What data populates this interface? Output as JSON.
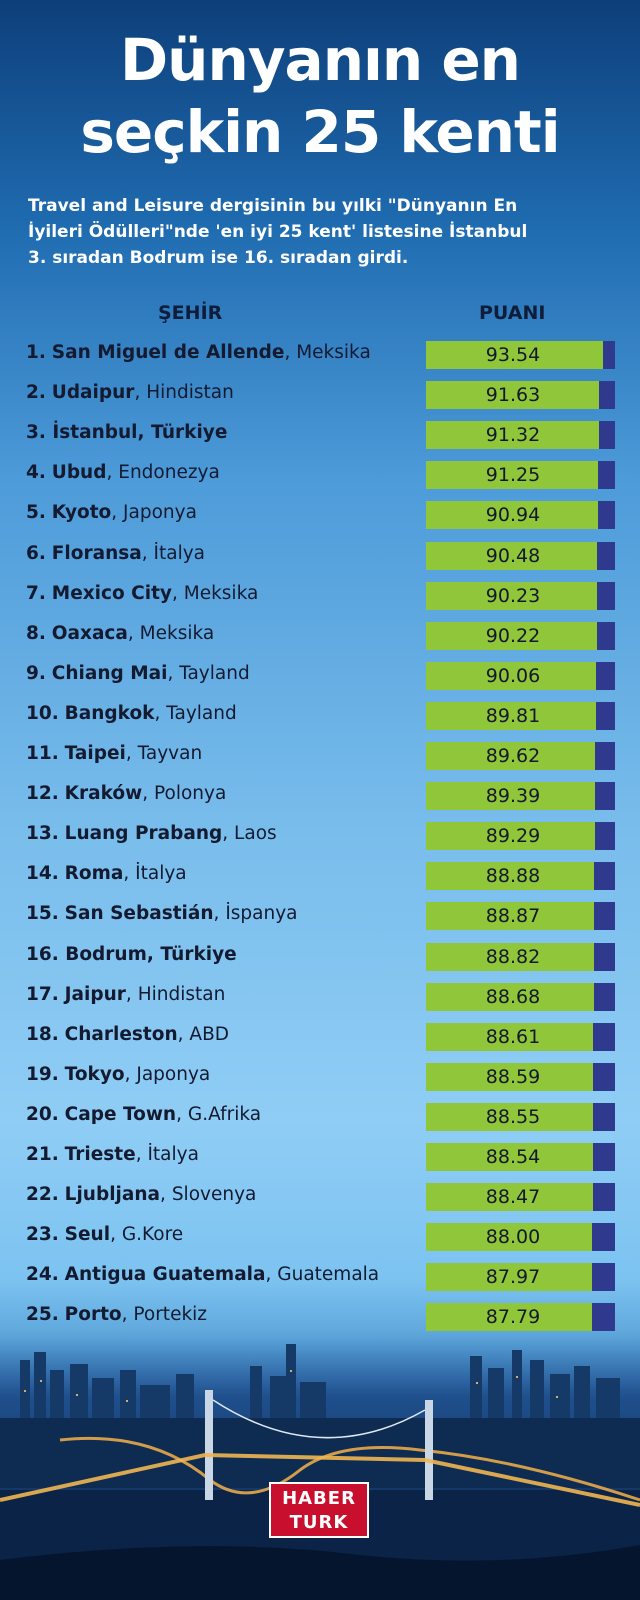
{
  "header": {
    "title_line1": "Dünyanın en",
    "title_line2": "seçkin 25 kenti",
    "subtitle_line1": "Travel and Leisure dergisinin bu yılki \"Dünyanın En",
    "subtitle_line2": "İyileri Ödülleri\"nde 'en iyi 25 kent' listesine İstanbul",
    "subtitle_line3": "3. sıradan Bodrum ise 16. sıradan girdi."
  },
  "columns": {
    "city": "ŞEHİR",
    "score": "PUANI"
  },
  "logo": {
    "line1": "HABER",
    "line2": "TURK"
  },
  "colors": {
    "bar": "#8fc63a",
    "bar_remainder": "#2f3a8f",
    "title": "#ffffff",
    "logo": "#c8102e"
  },
  "chart_data": {
    "type": "bar",
    "orientation": "horizontal",
    "xlim": [
      0,
      100
    ],
    "categories": [
      {
        "rank": "1.",
        "city": "San Miguel de Allende",
        "country": "Meksika",
        "highlight": false
      },
      {
        "rank": "2.",
        "city": "Udaipur",
        "country": "Hindistan",
        "highlight": false
      },
      {
        "rank": "3.",
        "city": "İstanbul",
        "country": "Türkiye",
        "highlight": true
      },
      {
        "rank": "4.",
        "city": "Ubud",
        "country": "Endonezya",
        "highlight": false
      },
      {
        "rank": "5.",
        "city": "Kyoto",
        "country": "Japonya",
        "highlight": false
      },
      {
        "rank": "6.",
        "city": "Floransa",
        "country": "İtalya",
        "highlight": false
      },
      {
        "rank": "7.",
        "city": "Mexico City",
        "country": "Meksika",
        "highlight": false
      },
      {
        "rank": "8.",
        "city": "Oaxaca",
        "country": "Meksika",
        "highlight": false
      },
      {
        "rank": "9.",
        "city": "Chiang Mai",
        "country": "Tayland",
        "highlight": false
      },
      {
        "rank": "10.",
        "city": "Bangkok",
        "country": "Tayland",
        "highlight": false
      },
      {
        "rank": "11.",
        "city": "Taipei",
        "country": "Tayvan",
        "highlight": false
      },
      {
        "rank": "12.",
        "city": "Kraków",
        "country": "Polonya",
        "highlight": false
      },
      {
        "rank": "13.",
        "city": "Luang Prabang",
        "country": "Laos",
        "highlight": false
      },
      {
        "rank": "14.",
        "city": "Roma",
        "country": "İtalya",
        "highlight": false
      },
      {
        "rank": "15.",
        "city": "San Sebastián",
        "country": "İspanya",
        "highlight": false
      },
      {
        "rank": "16.",
        "city": "Bodrum",
        "country": "Türkiye",
        "highlight": true
      },
      {
        "rank": "17.",
        "city": "Jaipur",
        "country": "Hindistan",
        "highlight": false
      },
      {
        "rank": "18.",
        "city": "Charleston",
        "country": "ABD",
        "highlight": false
      },
      {
        "rank": "19.",
        "city": "Tokyo",
        "country": "Japonya",
        "highlight": false
      },
      {
        "rank": "20.",
        "city": "Cape Town",
        "country": "G.Afrika",
        "highlight": false
      },
      {
        "rank": "21.",
        "city": "Trieste",
        "country": "İtalya",
        "highlight": false
      },
      {
        "rank": "22.",
        "city": "Ljubljana",
        "country": "Slovenya",
        "highlight": false
      },
      {
        "rank": "23.",
        "city": "Seul",
        "country": "G.Kore",
        "highlight": false
      },
      {
        "rank": "24.",
        "city": "Antigua Guatemala",
        "country": "Guatemala",
        "highlight": false
      },
      {
        "rank": "25.",
        "city": "Porto",
        "country": "Portekiz",
        "highlight": false
      }
    ],
    "values": [
      93.54,
      91.63,
      91.32,
      91.25,
      90.94,
      90.48,
      90.23,
      90.22,
      90.06,
      89.81,
      89.62,
      89.39,
      89.29,
      88.88,
      88.87,
      88.82,
      88.68,
      88.61,
      88.59,
      88.55,
      88.54,
      88.47,
      88.0,
      87.97,
      87.79
    ],
    "value_labels": [
      "93.54",
      "91.63",
      "91.32",
      "91.25",
      "90.94",
      "90.48",
      "90.23",
      "90.22",
      "90.06",
      "89.81",
      "89.62",
      "89.39",
      "89.29",
      "88.88",
      "88.87",
      "88.82",
      "88.68",
      "88.61",
      "88.59",
      "88.55",
      "88.54",
      "88.47",
      "88.00",
      "87.97",
      "87.79"
    ]
  }
}
